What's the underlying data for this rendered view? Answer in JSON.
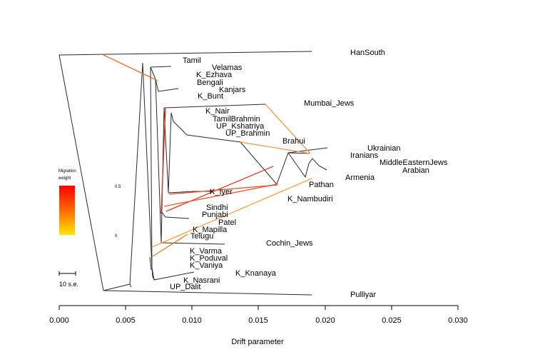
{
  "x_axis": {
    "label": "Drift parameter",
    "ticks": [
      "0.000",
      "0.005",
      "0.010",
      "0.015",
      "0.020",
      "0.025",
      "0.030"
    ]
  },
  "legend": {
    "title_line1": "Migration",
    "title_line2": "weight",
    "max_label": "0.5",
    "min_label": "0",
    "color_high": "#ff0000",
    "color_low": "#ffe600"
  },
  "scale_bar": {
    "label": "10 s.e."
  },
  "populations": [
    "HanSouth",
    "Tamil",
    "Velamas",
    "K_Ezhava",
    "Bengali",
    "Kanjars",
    "K_Bunt",
    "Mumbai_Jews",
    "K_Nair",
    "TamilBrahmin",
    "UP_Kshatriya",
    "UP_Brahmin",
    "Brahui",
    "Ukrainian",
    "Iranians",
    "MiddleEasternJews",
    "Arabian",
    "Armenia",
    "Pathan",
    "K_Iyer",
    "K_Nambudiri",
    "Sindhi",
    "Punjabi",
    "Patel",
    "K_Mapilla",
    "Telugu",
    "Cochin_Jews",
    "K_Varma",
    "K_Poduval",
    "K_Vaniya",
    "K_Knanaya",
    "K_Nasrani",
    "UP_Dalit",
    "Pulliyar"
  ]
}
